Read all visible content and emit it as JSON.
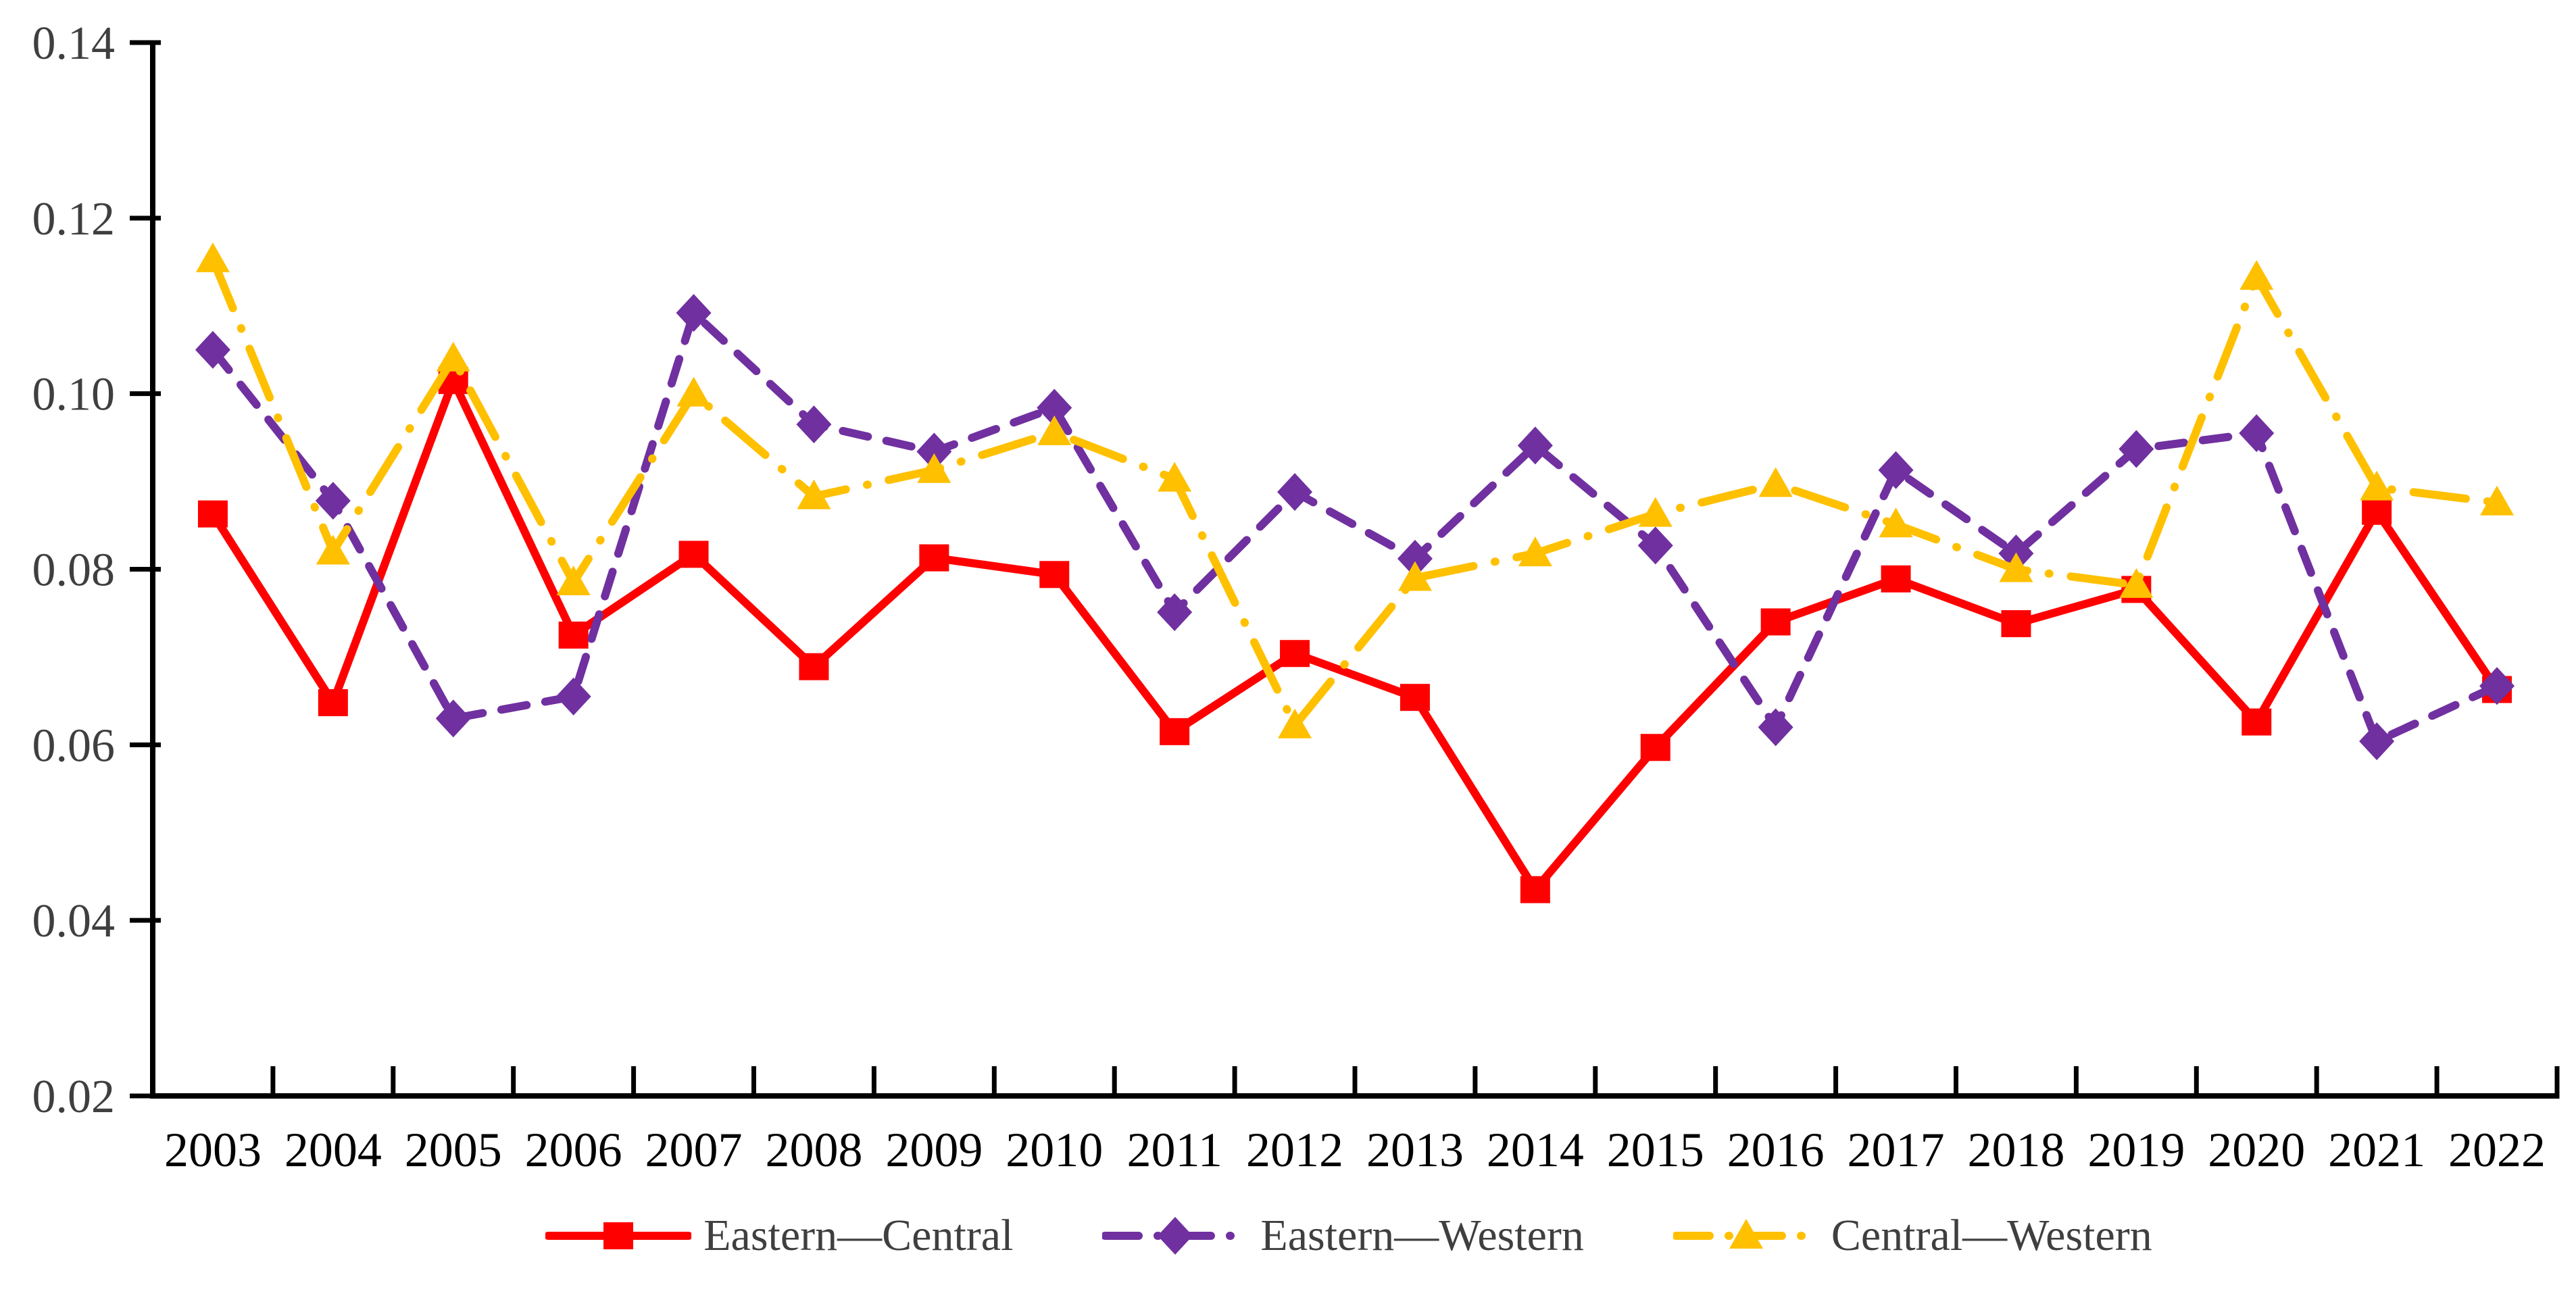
{
  "chart_data": {
    "type": "line",
    "title": "",
    "xlabel": "",
    "ylabel": "",
    "categories": [
      "2003",
      "2004",
      "2005",
      "2006",
      "2007",
      "2008",
      "2009",
      "2010",
      "2011",
      "2012",
      "2013",
      "2014",
      "2015",
      "2016",
      "2017",
      "2018",
      "2019",
      "2020",
      "2021",
      "2022"
    ],
    "series": [
      {
        "name": "Eastern—Central",
        "color": "#FF0000",
        "marker": "square",
        "line_style": "solid",
        "values": [
          0.0863,
          0.0648,
          0.1015,
          0.0725,
          0.0817,
          0.0689,
          0.0813,
          0.0794,
          0.0615,
          0.0704,
          0.0654,
          0.0435,
          0.0597,
          0.074,
          0.0789,
          0.0738,
          0.0777,
          0.0626,
          0.0866,
          0.0663
        ]
      },
      {
        "name": "Eastern—Western",
        "color": "#7030A0",
        "marker": "diamond",
        "line_style": "dashed",
        "values": [
          0.105,
          0.0878,
          0.063,
          0.0655,
          0.1092,
          0.0965,
          0.0934,
          0.0984,
          0.0751,
          0.0888,
          0.0812,
          0.0941,
          0.0827,
          0.062,
          0.0913,
          0.0818,
          0.0937,
          0.0955,
          0.0604,
          0.0667
        ]
      },
      {
        "name": "Central—Western",
        "color": "#FFC000",
        "marker": "triangle",
        "line_style": "dash-dot",
        "values": [
          0.1153,
          0.082,
          0.104,
          0.0785,
          0.1,
          0.0883,
          0.0913,
          0.0956,
          0.0903,
          0.0622,
          0.079,
          0.0818,
          0.0863,
          0.0897,
          0.0851,
          0.08,
          0.0782,
          0.1133,
          0.0893,
          0.0876
        ]
      }
    ],
    "ylim": [
      0.02,
      0.14
    ],
    "ytick_step": 0.02,
    "ytick_labels": [
      "0.02",
      "0.04",
      "0.06",
      "0.08",
      "0.10",
      "0.12",
      "0.14"
    ],
    "grid": false,
    "legend_position": "bottom",
    "axis_color": "#000000",
    "ytick_label_color": "#3F3F3F",
    "xtick_label_color": "#000000"
  }
}
